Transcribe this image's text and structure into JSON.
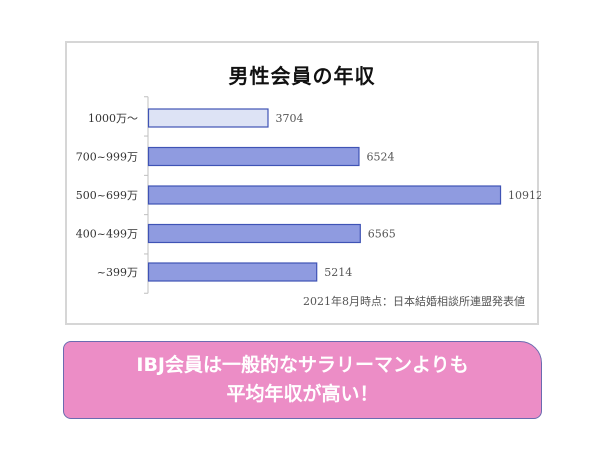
{
  "chart_data": {
    "type": "bar",
    "orientation": "horizontal",
    "title": "男性会員の年収",
    "categories": [
      "1000万〜",
      "700~999万",
      "500~699万",
      "400~499万",
      "~399万"
    ],
    "values": [
      3704,
      6524,
      10912,
      6565,
      5214
    ],
    "xlim": [
      0,
      11500
    ],
    "grid": false,
    "legend": "none",
    "data_labels": [
      "3704",
      "6524",
      "10912",
      "6565",
      "5214"
    ],
    "highlight_index": 0,
    "colors": {
      "bar_fill": "#8f9be0",
      "bar_fill_light": "#dde3f5",
      "bar_stroke": "#3f53b5",
      "label_text": "#555555"
    }
  },
  "source_note": "2021年8月時点：日本結婚相談所連盟発表値",
  "callout": {
    "line1": "IBJ会員は一般的なサラリーマンよりも",
    "line2": "平均年収が高い！",
    "colors": {
      "background": "#ec8dc6",
      "border": "#6b6bb0",
      "text": "#ffffff"
    }
  }
}
